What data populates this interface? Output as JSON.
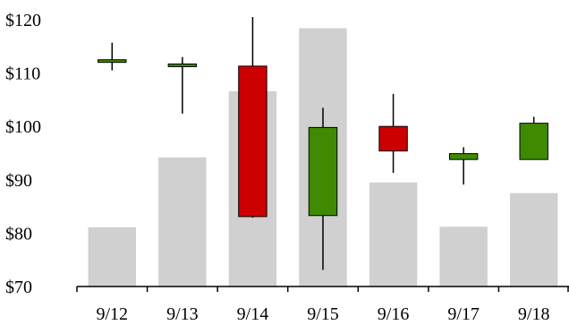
{
  "chart_data": {
    "type": "candlestick",
    "title": "",
    "xlabel": "",
    "ylabel": "",
    "categories": [
      "9/12",
      "9/13",
      "9/14",
      "9/15",
      "9/16",
      "9/17",
      "9/18"
    ],
    "ylim": [
      70,
      120
    ],
    "yticks": [
      70,
      80,
      90,
      100,
      110,
      120
    ],
    "ytick_labels": [
      "$70",
      "$80",
      "$90",
      "$100",
      "$110",
      "$120"
    ],
    "grid": false,
    "legend": "none",
    "series": [
      {
        "type": "candlestick",
        "open": [
          112.0,
          111.2,
          111.3,
          83.3,
          100.0,
          93.8,
          93.8
        ],
        "high": [
          115.7,
          113.0,
          120.5,
          103.5,
          106.1,
          96.1,
          101.8
        ],
        "low": [
          110.5,
          102.4,
          82.9,
          73.1,
          91.3,
          89.1,
          93.8
        ],
        "close": [
          112.5,
          111.7,
          83.1,
          99.8,
          95.4,
          94.9,
          100.6
        ]
      },
      {
        "type": "bar",
        "values": [
          81.1,
          94.2,
          106.6,
          118.4,
          89.5,
          81.2,
          87.5
        ]
      }
    ],
    "colors": {
      "up": "#3f8a00",
      "down": "#cc0000",
      "bar": "#d1d0d0",
      "axis": "#000000"
    }
  }
}
